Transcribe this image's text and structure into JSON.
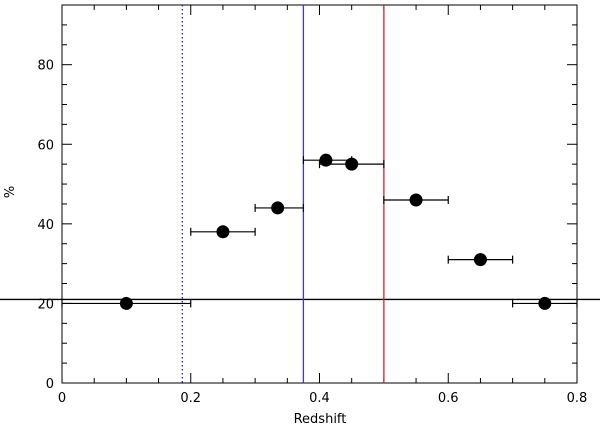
{
  "chart_data": {
    "type": "scatter",
    "xlabel": "Redshift",
    "ylabel": "%",
    "xlim": [
      0,
      0.8
    ],
    "ylim": [
      0,
      95
    ],
    "x_ticks": [
      {
        "value": 0,
        "label": "0"
      },
      {
        "value": 0.2,
        "label": "0.2"
      },
      {
        "value": 0.4,
        "label": "0.4"
      },
      {
        "value": 0.6,
        "label": "0.6"
      },
      {
        "value": 0.8,
        "label": "0.8"
      }
    ],
    "y_ticks": [
      {
        "value": 0,
        "label": "0"
      },
      {
        "value": 20,
        "label": "20"
      },
      {
        "value": 40,
        "label": "40"
      },
      {
        "value": 60,
        "label": "60"
      },
      {
        "value": 80,
        "label": "80"
      }
    ],
    "x_minor_step": 0.05,
    "y_minor_step": 5,
    "grid": false,
    "series": [
      {
        "marker_color": "#000000",
        "points": [
          {
            "x": 0.1,
            "y": 20,
            "xerr_low": 0.0,
            "xerr_high": 0.2
          },
          {
            "x": 0.25,
            "y": 38,
            "xerr_low": 0.2,
            "xerr_high": 0.3
          },
          {
            "x": 0.335,
            "y": 44,
            "xerr_low": 0.3,
            "xerr_high": 0.375
          },
          {
            "x": 0.41,
            "y": 56,
            "xerr_low": 0.375,
            "xerr_high": 0.45
          },
          {
            "x": 0.45,
            "y": 55,
            "xerr_low": 0.4,
            "xerr_high": 0.5
          },
          {
            "x": 0.55,
            "y": 46,
            "xerr_low": 0.5,
            "xerr_high": 0.6
          },
          {
            "x": 0.65,
            "y": 31,
            "xerr_low": 0.6,
            "xerr_high": 0.7
          },
          {
            "x": 0.75,
            "y": 20,
            "xerr_low": 0.7,
            "xerr_high": 0.8
          }
        ]
      }
    ],
    "reference_lines": [
      {
        "orientation": "horizontal",
        "value": 21,
        "color": "#000000",
        "style": "solid"
      },
      {
        "orientation": "vertical",
        "value": 0.187,
        "color": "#2a2ad6",
        "style": "dotted"
      },
      {
        "orientation": "vertical",
        "value": 0.375,
        "color": "#3a3ad8",
        "style": "solid"
      },
      {
        "orientation": "vertical",
        "value": 0.5,
        "color": "#e02020",
        "style": "solid"
      }
    ]
  }
}
